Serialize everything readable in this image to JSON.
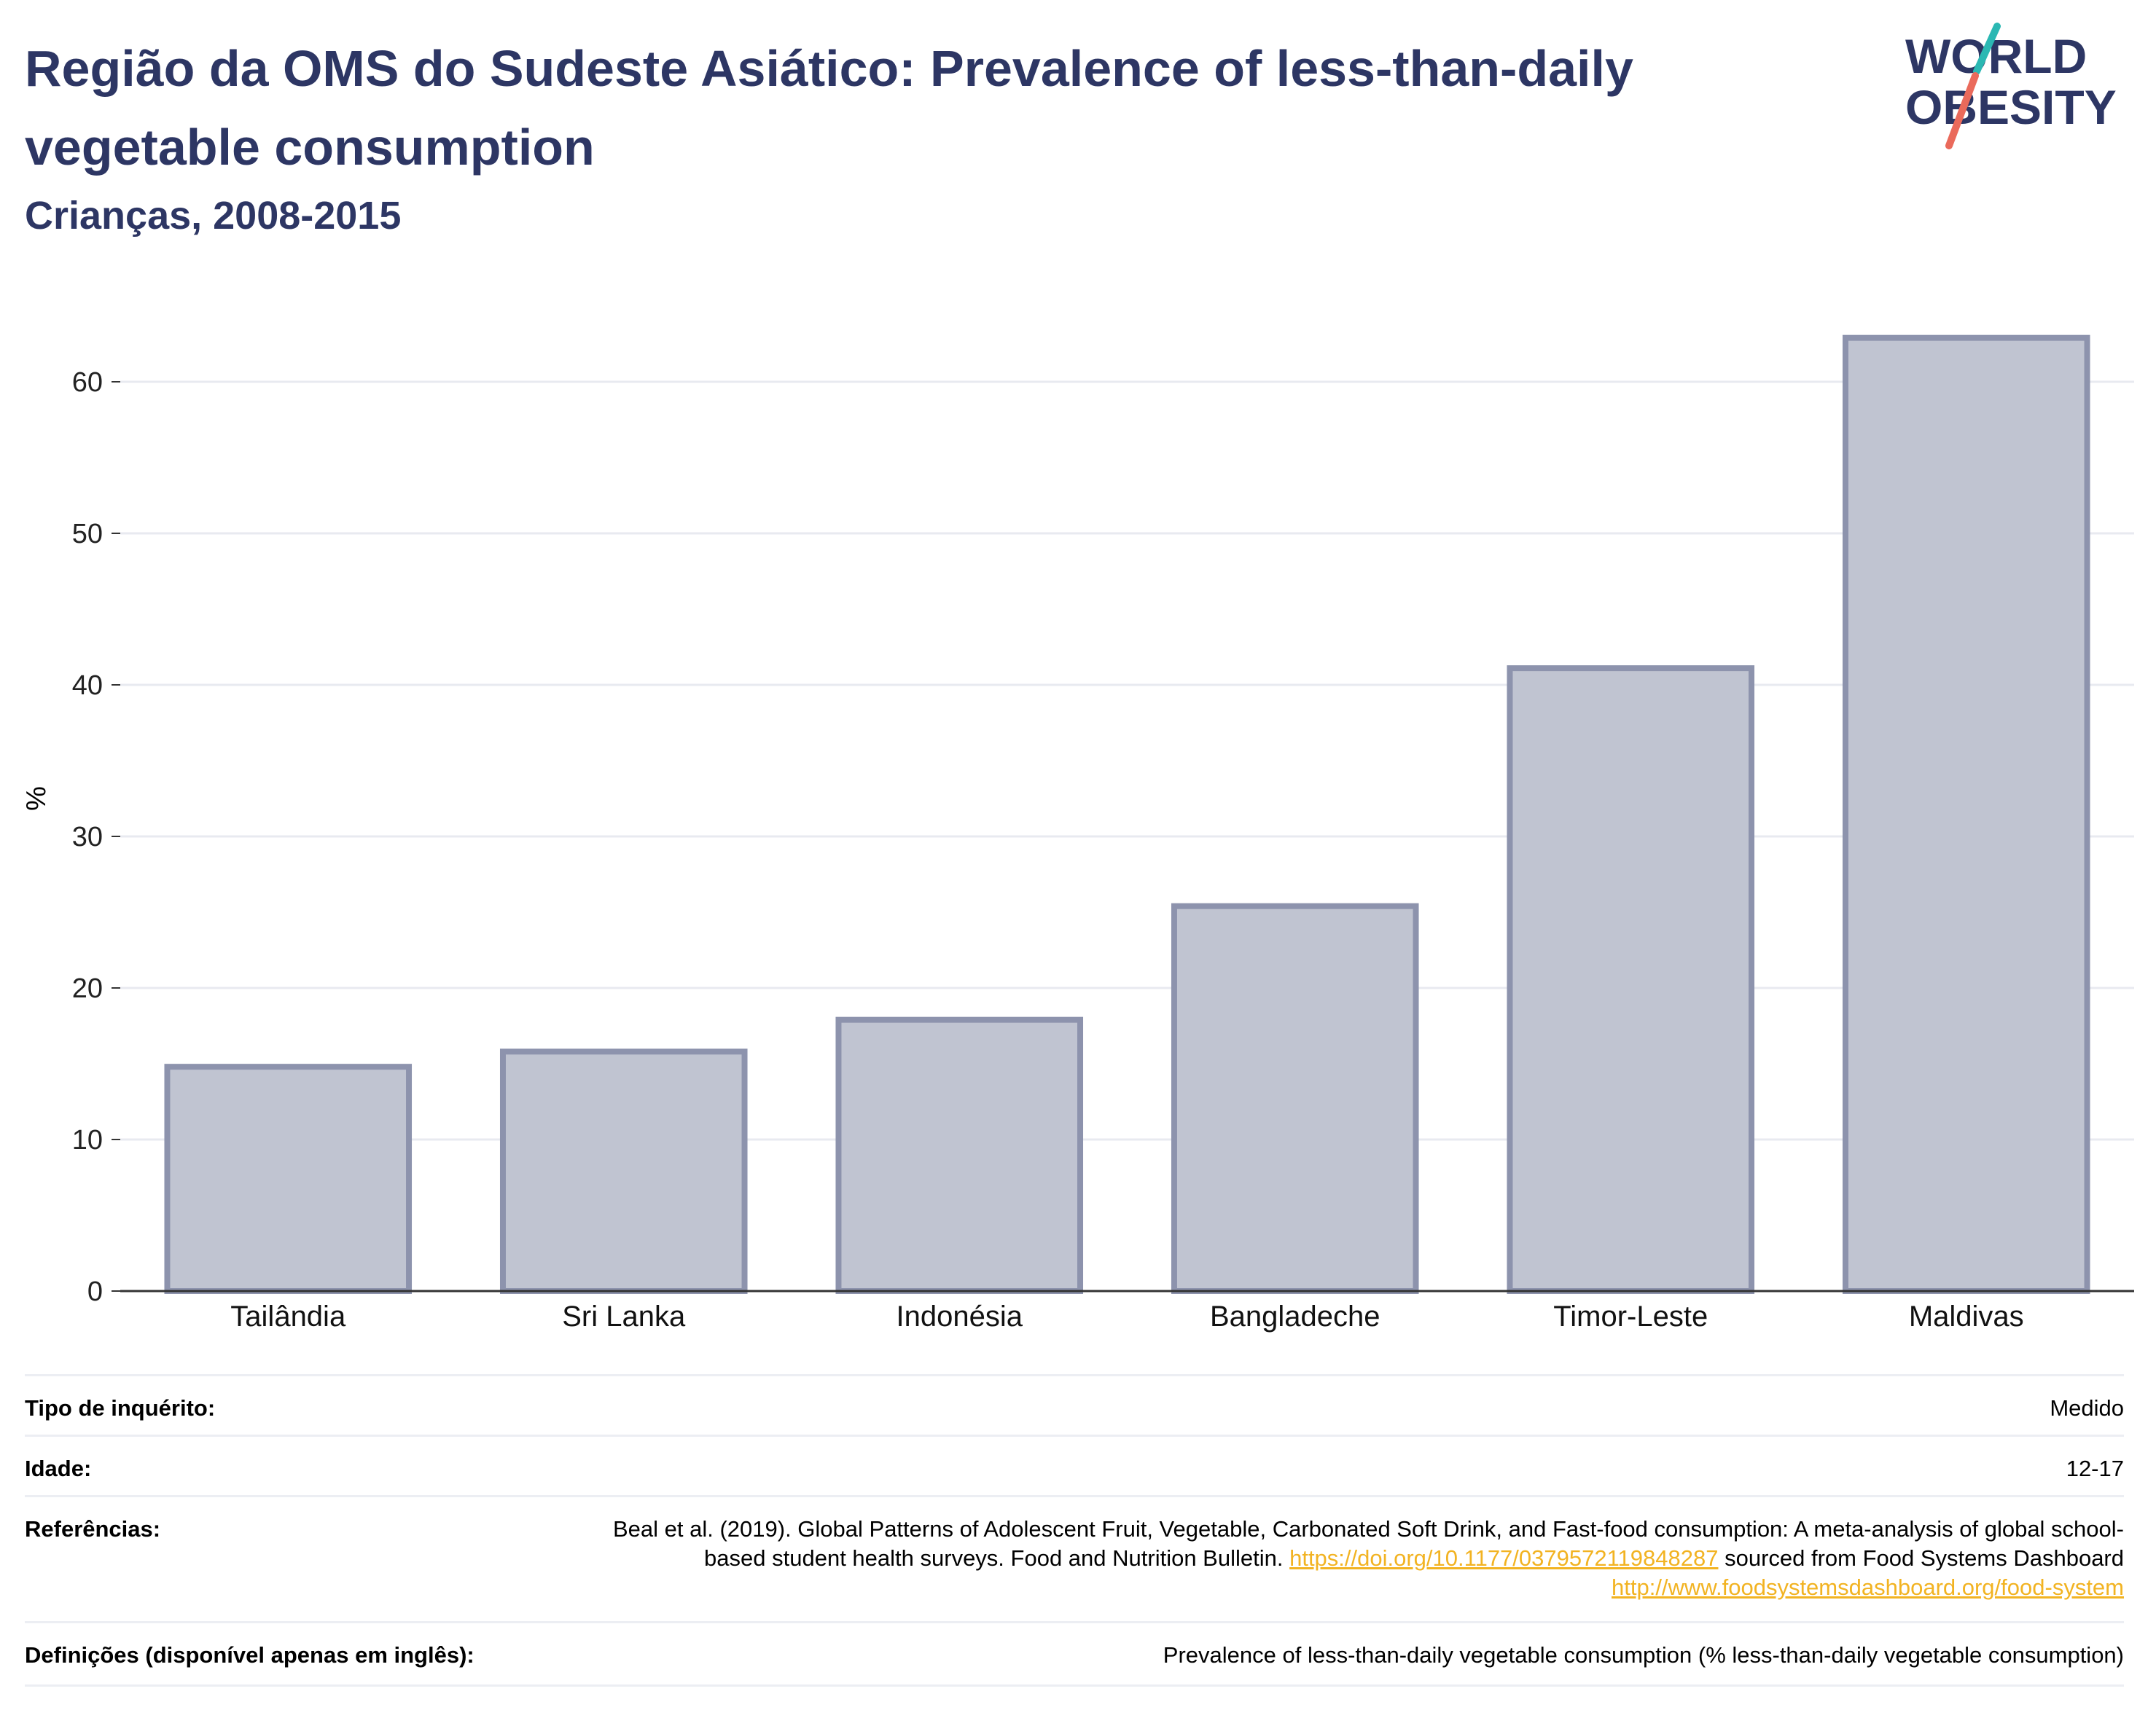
{
  "header": {
    "title": "Região da OMS do Sudeste Asiático: Prevalence of less-than-daily vegetable consumption",
    "subtitle": "Crianças, 2008-2015"
  },
  "logo": {
    "line1": "WORLD",
    "line2": "OBESITY"
  },
  "colors": {
    "title": "#2d3664",
    "bar_fill": "#c0c4d1",
    "bar_stroke": "#8d93ad",
    "grid": "#e8eaf0",
    "axis": "#333333",
    "link": "#f2b322",
    "logo_teal": "#2bb8b3",
    "logo_coral": "#ea6a5b"
  },
  "chart_data": {
    "type": "bar",
    "title": "Região da OMS do Sudeste Asiático: Prevalence of less-than-daily vegetable consumption",
    "subtitle": "Crianças, 2008-2015",
    "xlabel": "",
    "ylabel": "%",
    "categories": [
      "Tailândia",
      "Sri Lanka",
      "Indonésia",
      "Bangladeche",
      "Timor-Leste",
      "Maldivas"
    ],
    "values": [
      14.8,
      15.8,
      17.9,
      25.4,
      41.1,
      62.9
    ],
    "ylim": [
      0,
      65
    ],
    "yticks": [
      0,
      10,
      20,
      30,
      40,
      50,
      60
    ],
    "grid": true,
    "legend": "none"
  },
  "info": {
    "survey_type_label": "Tipo de inquérito:",
    "survey_type_value": "Medido",
    "age_label": "Idade:",
    "age_value": "12-17",
    "references_label": "Referências:",
    "references_text_1": "Beal et al. (2019). Global Patterns of Adolescent Fruit, Vegetable, Carbonated Soft Drink, and Fast-food consumption: A meta-analysis of global school-based student health surveys. Food and Nutrition Bulletin.",
    "references_link_1": "https://doi.org/10.1177/0379572119848287",
    "references_text_2": "sourced from Food Systems Dashboard",
    "references_link_2": "http://www.foodsystemsdashboard.org/food-system",
    "definitions_label": "Definições (disponível apenas em inglês):",
    "definitions_value": "Prevalence of less-than-daily vegetable consumption (% less-than-daily vegetable consumption)"
  }
}
